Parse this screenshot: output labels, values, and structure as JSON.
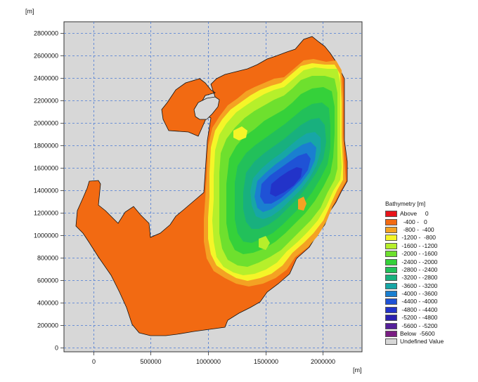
{
  "map": {
    "y_unit": "[m]",
    "x_unit": "[m]",
    "y_ticks": [
      "2800000",
      "2600000",
      "2400000",
      "2200000",
      "2000000",
      "1800000",
      "1600000",
      "1400000",
      "1200000",
      "1000000",
      "800000",
      "600000",
      "400000",
      "200000",
      "0"
    ],
    "x_ticks": [
      "0",
      "500000",
      "1000000",
      "1500000",
      "2000000"
    ],
    "colors": {
      "land": "#d7d7d7",
      "grid": "#4a7bd6",
      "frame": "#333333"
    }
  },
  "legend": {
    "title": "Bathymetry [m]",
    "items": [
      {
        "label": "Above     0",
        "color": "#e8141b"
      },
      {
        "label": "  -400 -   0",
        "color": "#f26a12"
      },
      {
        "label": "  -800 -  -400",
        "color": "#f4a223"
      },
      {
        "label": " -1200 -  -800",
        "color": "#f5f528"
      },
      {
        "label": " -1600 - -1200",
        "color": "#b6ef2b"
      },
      {
        "label": " -2000 - -1600",
        "color": "#6ee02e"
      },
      {
        "label": " -2400 - -2000",
        "color": "#35d13a"
      },
      {
        "label": " -2800 - -2400",
        "color": "#22c05a"
      },
      {
        "label": " -3200 - -2800",
        "color": "#18b07e"
      },
      {
        "label": " -3600 - -3200",
        "color": "#17a6a6"
      },
      {
        "label": " -4000 - -3600",
        "color": "#1a7fd0"
      },
      {
        "label": " -4400 - -4000",
        "color": "#1f52d6"
      },
      {
        "label": " -4800 - -4400",
        "color": "#2233c9"
      },
      {
        "label": " -5200 - -4800",
        "color": "#2a20b0"
      },
      {
        "label": " -5600 - -5200",
        "color": "#55209a"
      },
      {
        "label": "Below  -5600",
        "color": "#7a1d83"
      },
      {
        "label": "Undefined Value",
        "color": "#d7d7d7"
      }
    ]
  }
}
